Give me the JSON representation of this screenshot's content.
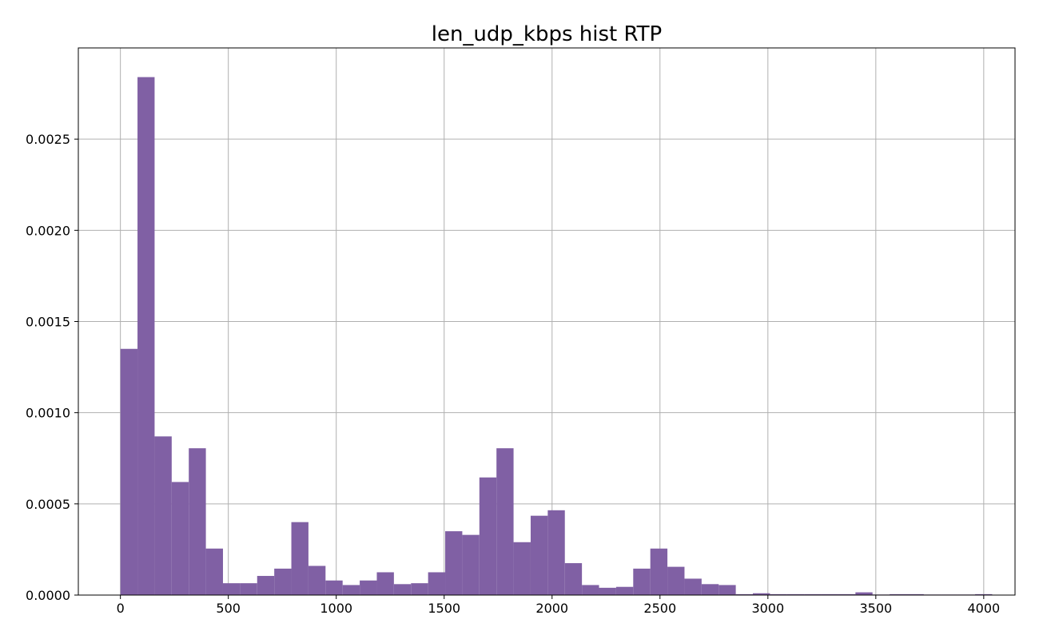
{
  "chart_data": {
    "type": "bar",
    "title": "len_udp_kbps hist RTP",
    "xlabel": "",
    "ylabel": "",
    "xlim": [
      -195,
      4145
    ],
    "ylim": [
      0,
      0.003
    ],
    "xticks": [
      0,
      500,
      1000,
      1500,
      2000,
      2500,
      3000,
      3500,
      4000
    ],
    "xtick_labels": [
      "0",
      "500",
      "1000",
      "1500",
      "2000",
      "2500",
      "3000",
      "3500",
      "4000"
    ],
    "yticks": [
      0,
      0.0005,
      0.001,
      0.0015,
      0.002,
      0.0025
    ],
    "ytick_labels": [
      "0.0000",
      "0.0005",
      "0.0010",
      "0.0015",
      "0.0020",
      "0.0025"
    ],
    "grid": true,
    "bar_color": "#8060a4",
    "bin_width": 79.2,
    "bin_edges_start": 0,
    "values": [
      0.00135,
      0.00284,
      0.00087,
      0.00062,
      0.000805,
      0.000255,
      6.5e-05,
      6.5e-05,
      0.000105,
      0.000145,
      0.0004,
      0.00016,
      8e-05,
      5.5e-05,
      8e-05,
      0.000125,
      6e-05,
      6.5e-05,
      0.000125,
      0.00035,
      0.00033,
      0.000645,
      0.000805,
      0.00029,
      0.000435,
      0.000465,
      0.000175,
      5.5e-05,
      4e-05,
      4.5e-05,
      0.000145,
      0.000255,
      0.000155,
      9e-05,
      6e-05,
      5.5e-05,
      5e-06,
      1e-05,
      5e-06,
      5e-06,
      5e-06,
      5e-06,
      5e-06,
      1.5e-05,
      3e-06,
      5e-06,
      5e-06,
      3e-06,
      3e-06,
      3e-06,
      5e-06
    ]
  }
}
